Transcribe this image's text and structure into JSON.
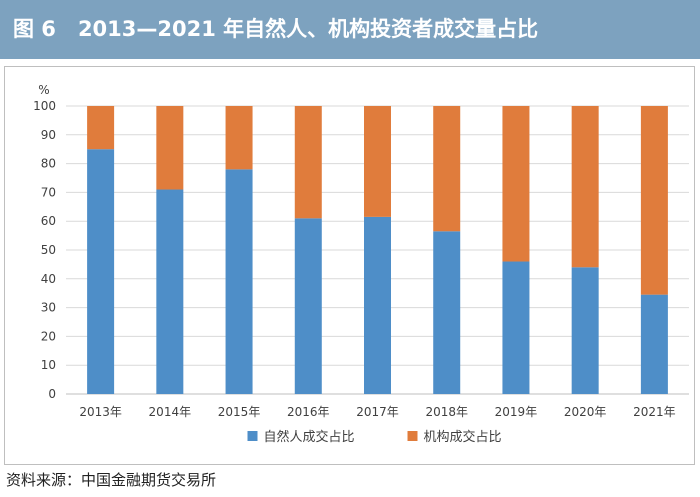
{
  "header": {
    "figure_label": "图 6",
    "title": "2013—2021 年自然人、机构投资者成交量占比"
  },
  "source": "资料来源：中国金融期货交易所",
  "colors": {
    "title_bar": "#7da2bf",
    "individual": "#4e8ec8",
    "institutional": "#e07c3c",
    "grid": "#d9d9d9"
  },
  "chart_data": {
    "type": "bar",
    "stacked": true,
    "title": "2013—2021 年自然人、机构投资者成交量占比",
    "xlabel": "",
    "ylabel": "%",
    "ylim": [
      0,
      100
    ],
    "yticks": [
      0,
      10,
      20,
      30,
      40,
      50,
      60,
      70,
      80,
      90,
      100
    ],
    "categories": [
      "2013年",
      "2014年",
      "2015年",
      "2016年",
      "2017年",
      "2018年",
      "2019年",
      "2020年",
      "2021年"
    ],
    "series": [
      {
        "name": "自然人成交占比",
        "color": "#4e8ec8",
        "values": [
          85,
          71,
          78,
          61,
          61.5,
          56.5,
          46,
          44,
          34.5
        ]
      },
      {
        "name": "机构成交占比",
        "color": "#e07c3c",
        "values": [
          15,
          29,
          22,
          39,
          38.5,
          43.5,
          54,
          56,
          65.5
        ]
      }
    ],
    "legend_position": "bottom",
    "grid": true
  }
}
